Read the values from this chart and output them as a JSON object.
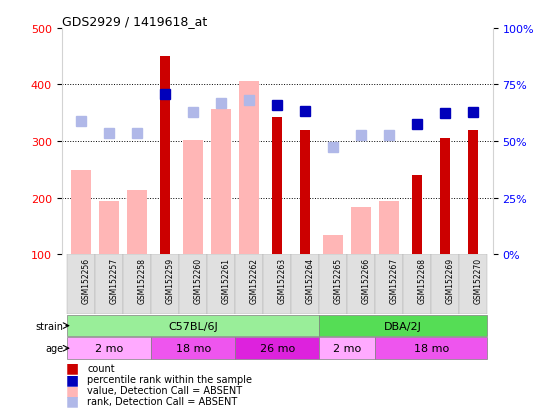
{
  "title": "GDS2929 / 1419618_at",
  "samples": [
    "GSM152256",
    "GSM152257",
    "GSM152258",
    "GSM152259",
    "GSM152260",
    "GSM152261",
    "GSM152262",
    "GSM152263",
    "GSM152264",
    "GSM152265",
    "GSM152266",
    "GSM152267",
    "GSM152268",
    "GSM152269",
    "GSM152270"
  ],
  "count_values": [
    null,
    null,
    null,
    450,
    null,
    null,
    null,
    342,
    320,
    null,
    null,
    null,
    240,
    305,
    320
  ],
  "count_absent_values": [
    248,
    193,
    213,
    null,
    302,
    357,
    407,
    null,
    null,
    133,
    183,
    193,
    null,
    null,
    null
  ],
  "rank_values": [
    null,
    null,
    null,
    383,
    null,
    null,
    null,
    363,
    353,
    null,
    null,
    null,
    330,
    350,
    352
  ],
  "rank_absent_values": [
    335,
    315,
    315,
    null,
    352,
    368,
    373,
    null,
    null,
    null,
    310,
    310,
    null,
    null,
    null
  ],
  "rank_absent_low": [
    null,
    null,
    null,
    null,
    null,
    null,
    null,
    null,
    null,
    290,
    null,
    null,
    null,
    null,
    null
  ],
  "ylim_left": [
    100,
    500
  ],
  "ylim_right": [
    0,
    100
  ],
  "yticks_left": [
    100,
    200,
    300,
    400,
    500
  ],
  "yticks_right": [
    0,
    25,
    50,
    75,
    100
  ],
  "grid_lines": [
    200,
    300,
    400
  ],
  "color_count": "#cc0000",
  "color_rank": "#0000bb",
  "color_count_absent": "#ffb6b6",
  "color_rank_absent": "#b0b8e8",
  "strain_c57_color": "#99ee99",
  "strain_dba_color": "#55dd55",
  "age_light_color": "#ffaaff",
  "age_dark_color": "#ee55ee",
  "age_darker_color": "#dd22dd",
  "marker_size": 7,
  "bg_color": "#ffffff"
}
